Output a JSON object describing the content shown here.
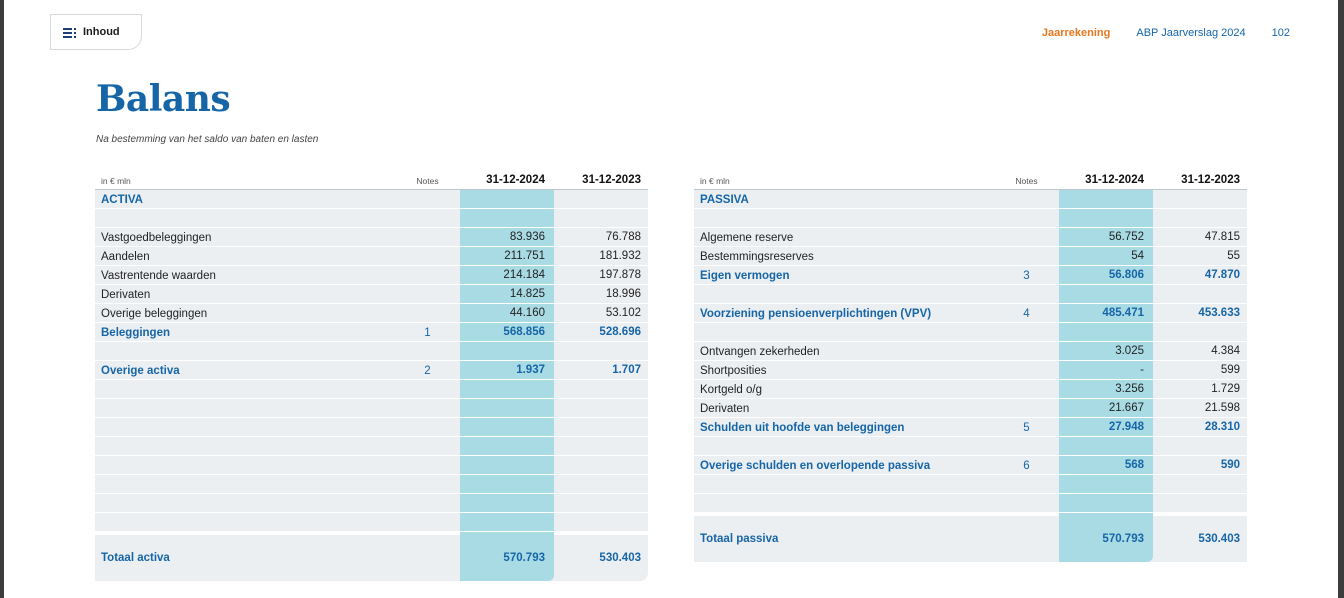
{
  "nav": {
    "inhoud_label": "Inhoud",
    "section": "Jaarrekening",
    "report": "ABP Jaarverslag 2024",
    "page_number": "102"
  },
  "title": "Balans",
  "subtitle": "Na bestemming van het saldo van baten en lasten",
  "colors": {
    "accent_blue": "#1565a7",
    "accent_orange": "#e87722",
    "highlight_column": "#a9dbe5"
  },
  "activa": {
    "header": {
      "unit": "in € mln",
      "notes": "Notes",
      "col1": "31-12-2024",
      "col2": "31-12-2023"
    },
    "rows": [
      {
        "label": "ACTIVA",
        "note": "",
        "v2024": "",
        "v2023": "",
        "bold": true
      },
      {
        "label": "",
        "note": "",
        "v2024": "",
        "v2023": ""
      },
      {
        "label": "Vastgoedbeleggingen",
        "note": "",
        "v2024": "83.936",
        "v2023": "76.788"
      },
      {
        "label": "Aandelen",
        "note": "",
        "v2024": "211.751",
        "v2023": "181.932"
      },
      {
        "label": "Vastrentende waarden",
        "note": "",
        "v2024": "214.184",
        "v2023": "197.878"
      },
      {
        "label": "Derivaten",
        "note": "",
        "v2024": "14.825",
        "v2023": "18.996"
      },
      {
        "label": "Overige beleggingen",
        "note": "",
        "v2024": "44.160",
        "v2023": "53.102"
      },
      {
        "label": "Beleggingen",
        "note": "1",
        "v2024": "568.856",
        "v2023": "528.696",
        "bold": true
      },
      {
        "label": "",
        "note": "",
        "v2024": "",
        "v2023": ""
      },
      {
        "label": "Overige activa",
        "note": "2",
        "v2024": "1.937",
        "v2023": "1.707",
        "bold": true
      },
      {
        "label": "",
        "note": "",
        "v2024": "",
        "v2023": ""
      },
      {
        "label": "",
        "note": "",
        "v2024": "",
        "v2023": ""
      },
      {
        "label": "",
        "note": "",
        "v2024": "",
        "v2023": ""
      },
      {
        "label": "",
        "note": "",
        "v2024": "",
        "v2023": ""
      },
      {
        "label": "",
        "note": "",
        "v2024": "",
        "v2023": ""
      },
      {
        "label": "",
        "note": "",
        "v2024": "",
        "v2023": ""
      },
      {
        "label": "",
        "note": "",
        "v2024": "",
        "v2023": ""
      },
      {
        "label": "",
        "note": "",
        "v2024": "",
        "v2023": ""
      }
    ],
    "total": {
      "label": "Totaal activa",
      "v2024": "570.793",
      "v2023": "530.403"
    }
  },
  "passiva": {
    "header": {
      "unit": "in € mln",
      "notes": "Notes",
      "col1": "31-12-2024",
      "col2": "31-12-2023"
    },
    "rows": [
      {
        "label": "PASSIVA",
        "note": "",
        "v2024": "",
        "v2023": "",
        "bold": true
      },
      {
        "label": "",
        "note": "",
        "v2024": "",
        "v2023": ""
      },
      {
        "label": "Algemene reserve",
        "note": "",
        "v2024": "56.752",
        "v2023": "47.815"
      },
      {
        "label": "Bestemmingsreserves",
        "note": "",
        "v2024": "54",
        "v2023": "55"
      },
      {
        "label": "Eigen vermogen",
        "note": "3",
        "v2024": "56.806",
        "v2023": "47.870",
        "bold": true
      },
      {
        "label": "",
        "note": "",
        "v2024": "",
        "v2023": ""
      },
      {
        "label": "Voorziening pensioenverplichtingen (VPV)",
        "note": "4",
        "v2024": "485.471",
        "v2023": "453.633",
        "bold": true
      },
      {
        "label": "",
        "note": "",
        "v2024": "",
        "v2023": ""
      },
      {
        "label": "Ontvangen zekerheden",
        "note": "",
        "v2024": "3.025",
        "v2023": "4.384"
      },
      {
        "label": "Shortposities",
        "note": "",
        "v2024": "-",
        "v2023": "599"
      },
      {
        "label": "Kortgeld o/g",
        "note": "",
        "v2024": "3.256",
        "v2023": "1.729"
      },
      {
        "label": "Derivaten",
        "note": "",
        "v2024": "21.667",
        "v2023": "21.598"
      },
      {
        "label": "Schulden uit hoofde van beleggingen",
        "note": "5",
        "v2024": "27.948",
        "v2023": "28.310",
        "bold": true
      },
      {
        "label": "",
        "note": "",
        "v2024": "",
        "v2023": ""
      },
      {
        "label": "Overige schulden en overlopende passiva",
        "note": "6",
        "v2024": "568",
        "v2023": "590",
        "bold": true
      },
      {
        "label": "",
        "note": "",
        "v2024": "",
        "v2023": ""
      },
      {
        "label": "",
        "note": "",
        "v2024": "",
        "v2023": ""
      }
    ],
    "total": {
      "label": "Totaal passiva",
      "v2024": "570.793",
      "v2023": "530.403"
    }
  }
}
